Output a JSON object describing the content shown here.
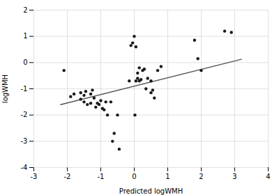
{
  "chart_data": {
    "type": "scatter",
    "xlabel": "Predicted logWMH",
    "ylabel": "logWMH",
    "xlim": [
      -3,
      4
    ],
    "ylim": [
      -4,
      2
    ],
    "xticks": [
      -3,
      -2,
      -1,
      0,
      1,
      2,
      3,
      4
    ],
    "yticks": [
      -4,
      -3,
      -2,
      -1,
      0,
      1,
      2
    ],
    "grid": true,
    "series": [
      {
        "type": "scatter",
        "color": "#1a1a1a",
        "x": [
          -2.1,
          -1.9,
          -1.8,
          -1.6,
          -1.6,
          -1.5,
          -1.5,
          -1.45,
          -1.4,
          -1.3,
          -1.3,
          -1.25,
          -1.2,
          -1.15,
          -1.1,
          -1.05,
          -1.0,
          -0.95,
          -0.9,
          -0.85,
          -0.8,
          -0.7,
          -0.65,
          -0.6,
          -0.5,
          -0.45,
          -0.15,
          -0.1,
          0.0,
          0.05,
          0.05,
          0.1,
          0.1,
          0.15,
          0.15,
          0.2,
          0.25,
          0.3,
          0.35,
          0.4,
          0.5,
          0.5,
          0.55,
          0.6,
          0.7,
          0.8,
          1.8,
          1.9,
          2.0,
          2.7,
          2.9,
          -0.05,
          0.02
        ],
        "values": [
          -0.3,
          -1.3,
          -1.2,
          -1.15,
          -1.4,
          -1.25,
          -1.5,
          -1.1,
          -1.6,
          -1.2,
          -1.55,
          -1.05,
          -1.35,
          -1.7,
          -1.55,
          -1.6,
          -1.45,
          -1.75,
          -1.8,
          -1.5,
          -2.0,
          -1.5,
          -3.0,
          -2.7,
          -2.0,
          -3.3,
          -0.7,
          0.65,
          1.0,
          0.6,
          -0.7,
          -0.6,
          -0.4,
          -0.2,
          -0.7,
          -0.65,
          -0.3,
          -0.25,
          -1.0,
          -0.6,
          -0.7,
          -1.15,
          -1.05,
          -1.35,
          -0.3,
          -0.15,
          0.85,
          0.15,
          -0.3,
          1.2,
          1.15,
          0.75,
          -2.0
        ]
      },
      {
        "type": "line",
        "color": "#555555",
        "x": [
          -2.2,
          3.2
        ],
        "values": [
          -1.604,
          0.124
        ]
      }
    ]
  }
}
